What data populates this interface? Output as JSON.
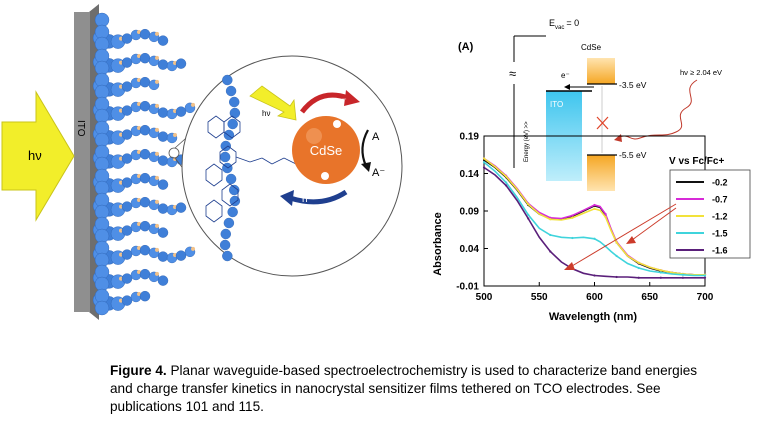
{
  "figure": {
    "caption_label": "Figure 4.",
    "caption_text": "Planar waveguide-based spectroelectrochemistry is used to characterize band energies and charge transfer kinetics in nanocrystal sensitizer films tethered on TCO electrodes. See publications 101 and 115."
  },
  "schematic": {
    "light_label": "hν",
    "electrode_label": "ITO",
    "zoom_light_label": "hν",
    "nanocrystal_label": "CdSe",
    "electron_label": "e⁻",
    "hole_label": "h⁺",
    "acceptor_label": "A",
    "acceptor_reduced_label": "A⁻",
    "colors": {
      "arrow": "#f2ee2a",
      "electrode": "#8a8a8a",
      "nanocrystal": "#e8742a",
      "electron_arrow": "#c8262a",
      "hole_arrow": "#1f3f8f",
      "dots": "#3f7fd8"
    }
  },
  "energy_diagram": {
    "panel_label": "(A)",
    "vacuum_label": "E",
    "vacuum_subscript": "vac",
    "vacuum_value": "= 0",
    "break_symbol": "≈",
    "ito_label": "ITO",
    "cdse_label": "CdSe",
    "electron_label": "e⁻",
    "cb_label": "-3.5 eV",
    "vb_label": "-5.5 eV",
    "photon_label": "hν ≥ 2.04 eV",
    "axis_label": "Energy (eV) >>",
    "colors": {
      "ito": "#3ec5ee",
      "cdse": "#f5a623",
      "cross": "#e0452a"
    }
  },
  "chart_data": {
    "type": "line",
    "xlabel": "Wavelength (nm)",
    "ylabel": "Absorbance",
    "xlim": [
      500,
      700
    ],
    "ylim": [
      -0.01,
      0.19
    ],
    "xticks": [
      500,
      550,
      600,
      650,
      700
    ],
    "yticks": [
      -0.01,
      0.04,
      0.09,
      0.14,
      0.19
    ],
    "legend_title": "V vs Fc/Fc+",
    "legend_position": "right",
    "series": [
      {
        "name": "-0.2",
        "color": "#111111",
        "x": [
          500,
          510,
          520,
          530,
          540,
          550,
          560,
          570,
          580,
          590,
          600,
          605,
          610,
          615,
          620,
          630,
          640,
          650,
          660,
          670,
          680,
          690,
          700
        ],
        "y": [
          0.158,
          0.148,
          0.135,
          0.118,
          0.098,
          0.086,
          0.08,
          0.079,
          0.083,
          0.09,
          0.097,
          0.095,
          0.085,
          0.065,
          0.048,
          0.03,
          0.02,
          0.014,
          0.01,
          0.008,
          0.006,
          0.005,
          0.005
        ]
      },
      {
        "name": "-0.7",
        "color": "#d72ad7",
        "x": [
          500,
          510,
          520,
          530,
          540,
          550,
          560,
          570,
          580,
          590,
          600,
          605,
          610,
          615,
          620,
          630,
          640,
          650,
          660,
          670,
          680,
          690,
          700
        ],
        "y": [
          0.16,
          0.15,
          0.137,
          0.12,
          0.1,
          0.088,
          0.081,
          0.08,
          0.084,
          0.091,
          0.098,
          0.096,
          0.086,
          0.066,
          0.049,
          0.031,
          0.021,
          0.015,
          0.011,
          0.008,
          0.006,
          0.005,
          0.005
        ]
      },
      {
        "name": "-1.2",
        "color": "#f2e23a",
        "x": [
          500,
          510,
          520,
          530,
          540,
          550,
          560,
          570,
          580,
          590,
          600,
          605,
          610,
          615,
          620,
          630,
          640,
          650,
          660,
          670,
          680,
          690,
          700
        ],
        "y": [
          0.16,
          0.149,
          0.136,
          0.119,
          0.099,
          0.086,
          0.079,
          0.078,
          0.081,
          0.087,
          0.093,
          0.091,
          0.082,
          0.064,
          0.048,
          0.03,
          0.021,
          0.015,
          0.011,
          0.008,
          0.006,
          0.005,
          0.005
        ]
      },
      {
        "name": "-1.5",
        "color": "#3fd4dc",
        "x": [
          500,
          510,
          520,
          530,
          540,
          550,
          560,
          570,
          580,
          590,
          600,
          605,
          610,
          615,
          620,
          630,
          640,
          650,
          660,
          670,
          680,
          690,
          700
        ],
        "y": [
          0.155,
          0.143,
          0.128,
          0.108,
          0.085,
          0.067,
          0.058,
          0.055,
          0.054,
          0.055,
          0.053,
          0.049,
          0.043,
          0.036,
          0.03,
          0.02,
          0.014,
          0.01,
          0.008,
          0.006,
          0.005,
          0.004,
          0.004
        ]
      },
      {
        "name": "-1.6",
        "color": "#5a1f7a",
        "x": [
          500,
          510,
          520,
          530,
          540,
          550,
          560,
          570,
          580,
          590,
          600,
          610,
          620,
          630,
          640,
          650,
          660,
          670,
          680,
          690,
          700
        ],
        "y": [
          0.148,
          0.138,
          0.124,
          0.104,
          0.08,
          0.055,
          0.036,
          0.022,
          0.013,
          0.007,
          0.004,
          0.003,
          0.002,
          0.002,
          0.001,
          0.001,
          0.001,
          0.001,
          0.001,
          0.001,
          0.001
        ]
      }
    ],
    "annotation_color": "#cc3b2a"
  }
}
